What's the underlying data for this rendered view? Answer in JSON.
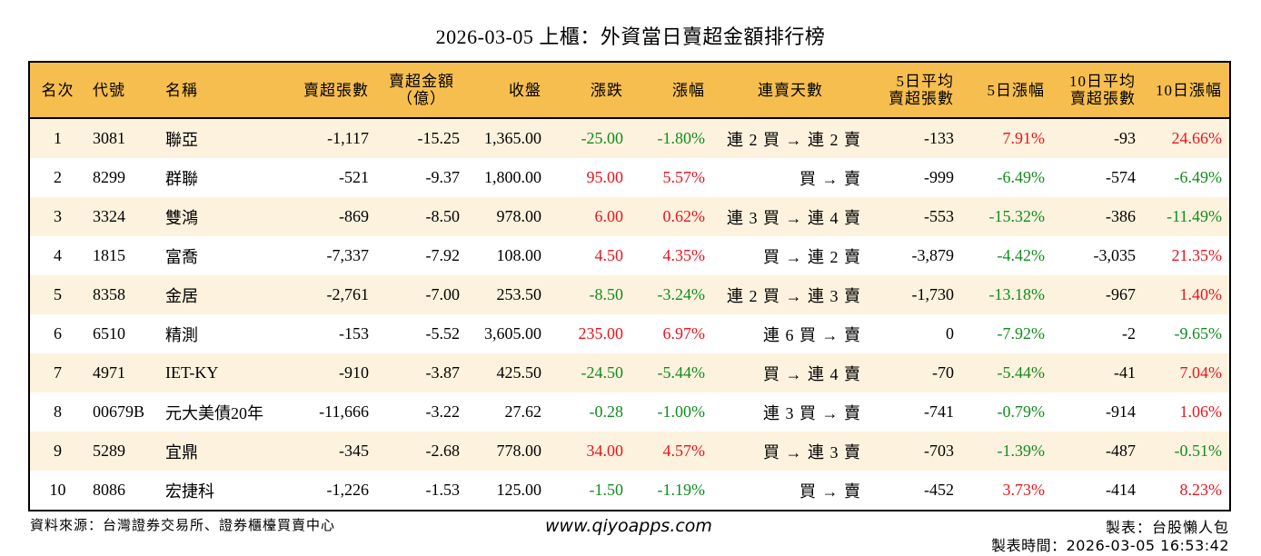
{
  "title": "2026-03-05 上櫃：外資當日賣超金額排行榜",
  "colors": {
    "header_bg": "#F6BE4F",
    "odd_row_bg": "#FDF2DE",
    "even_row_bg": "#FFFFFF",
    "up": "#E8141E",
    "down": "#128C1E"
  },
  "table": {
    "headers": [
      "名次",
      "代號",
      "名稱",
      "賣超張數",
      "賣超金額\n（億）",
      "收盤",
      "漲跌",
      "漲幅",
      "連賣天數",
      "5日平均\n賣超張數",
      "5日漲幅",
      "10日平均\n賣超張數",
      "10日漲幅"
    ],
    "header_lines": {
      "h4a": "賣超金額",
      "h4b": "（億）",
      "h9a": "5日平均",
      "h9b": "賣超張數",
      "h11a": "10日平均",
      "h11b": "賣超張數"
    },
    "rows": [
      {
        "rank": "1",
        "code": "3081",
        "name": "聯亞",
        "net_sell_lots": "-1,117",
        "net_sell_amount": "-15.25",
        "close": "1,365.00",
        "change": "-25.00",
        "change_dir": "down",
        "pct": "-1.80%",
        "pct_dir": "down",
        "streak": "連 2 買 → 連 2 賣",
        "avg5": "-133",
        "pct5": "7.91%",
        "pct5_dir": "up",
        "avg10": "-93",
        "pct10": "24.66%",
        "pct10_dir": "up"
      },
      {
        "rank": "2",
        "code": "8299",
        "name": "群聯",
        "net_sell_lots": "-521",
        "net_sell_amount": "-9.37",
        "close": "1,800.00",
        "change": "95.00",
        "change_dir": "up",
        "pct": "5.57%",
        "pct_dir": "up",
        "streak": "買 → 賣",
        "avg5": "-999",
        "pct5": "-6.49%",
        "pct5_dir": "down",
        "avg10": "-574",
        "pct10": "-6.49%",
        "pct10_dir": "down"
      },
      {
        "rank": "3",
        "code": "3324",
        "name": "雙鴻",
        "net_sell_lots": "-869",
        "net_sell_amount": "-8.50",
        "close": "978.00",
        "change": "6.00",
        "change_dir": "up",
        "pct": "0.62%",
        "pct_dir": "up",
        "streak": "連 3 買 → 連 4 賣",
        "avg5": "-553",
        "pct5": "-15.32%",
        "pct5_dir": "down",
        "avg10": "-386",
        "pct10": "-11.49%",
        "pct10_dir": "down"
      },
      {
        "rank": "4",
        "code": "1815",
        "name": "富喬",
        "net_sell_lots": "-7,337",
        "net_sell_amount": "-7.92",
        "close": "108.00",
        "change": "4.50",
        "change_dir": "up",
        "pct": "4.35%",
        "pct_dir": "up",
        "streak": "買 → 連 2 賣",
        "avg5": "-3,879",
        "pct5": "-4.42%",
        "pct5_dir": "down",
        "avg10": "-3,035",
        "pct10": "21.35%",
        "pct10_dir": "up"
      },
      {
        "rank": "5",
        "code": "8358",
        "name": "金居",
        "net_sell_lots": "-2,761",
        "net_sell_amount": "-7.00",
        "close": "253.50",
        "change": "-8.50",
        "change_dir": "down",
        "pct": "-3.24%",
        "pct_dir": "down",
        "streak": "連 2 買 → 連 3 賣",
        "avg5": "-1,730",
        "pct5": "-13.18%",
        "pct5_dir": "down",
        "avg10": "-967",
        "pct10": "1.40%",
        "pct10_dir": "up"
      },
      {
        "rank": "6",
        "code": "6510",
        "name": "精測",
        "net_sell_lots": "-153",
        "net_sell_amount": "-5.52",
        "close": "3,605.00",
        "change": "235.00",
        "change_dir": "up",
        "pct": "6.97%",
        "pct_dir": "up",
        "streak": "連 6 買 → 賣",
        "avg5": "0",
        "pct5": "-7.92%",
        "pct5_dir": "down",
        "avg10": "-2",
        "pct10": "-9.65%",
        "pct10_dir": "down"
      },
      {
        "rank": "7",
        "code": "4971",
        "name": "IET-KY",
        "net_sell_lots": "-910",
        "net_sell_amount": "-3.87",
        "close": "425.50",
        "change": "-24.50",
        "change_dir": "down",
        "pct": "-5.44%",
        "pct_dir": "down",
        "streak": "買 → 連 4 賣",
        "avg5": "-70",
        "pct5": "-5.44%",
        "pct5_dir": "down",
        "avg10": "-41",
        "pct10": "7.04%",
        "pct10_dir": "up"
      },
      {
        "rank": "8",
        "code": "00679B",
        "name": "元大美債20年",
        "net_sell_lots": "-11,666",
        "net_sell_amount": "-3.22",
        "close": "27.62",
        "change": "-0.28",
        "change_dir": "down",
        "pct": "-1.00%",
        "pct_dir": "down",
        "streak": "連 3 買 → 賣",
        "avg5": "-741",
        "pct5": "-0.79%",
        "pct5_dir": "down",
        "avg10": "-914",
        "pct10": "1.06%",
        "pct10_dir": "up"
      },
      {
        "rank": "9",
        "code": "5289",
        "name": "宜鼎",
        "net_sell_lots": "-345",
        "net_sell_amount": "-2.68",
        "close": "778.00",
        "change": "34.00",
        "change_dir": "up",
        "pct": "4.57%",
        "pct_dir": "up",
        "streak": "買 → 連 3 賣",
        "avg5": "-703",
        "pct5": "-1.39%",
        "pct5_dir": "down",
        "avg10": "-487",
        "pct10": "-0.51%",
        "pct10_dir": "down"
      },
      {
        "rank": "10",
        "code": "8086",
        "name": "宏捷科",
        "net_sell_lots": "-1,226",
        "net_sell_amount": "-1.53",
        "close": "125.00",
        "change": "-1.50",
        "change_dir": "down",
        "pct": "-1.19%",
        "pct_dir": "down",
        "streak": "買 → 賣",
        "avg5": "-452",
        "pct5": "3.73%",
        "pct5_dir": "up",
        "avg10": "-414",
        "pct10": "8.23%",
        "pct10_dir": "up"
      }
    ]
  },
  "footer": {
    "source": "資料來源：台灣證券交易所、證券櫃檯買賣中心",
    "website": "www.qiyoapps.com",
    "author": "製表：台股懶人包",
    "made_time": "製表時間：2026-03-05 16:53:42"
  }
}
